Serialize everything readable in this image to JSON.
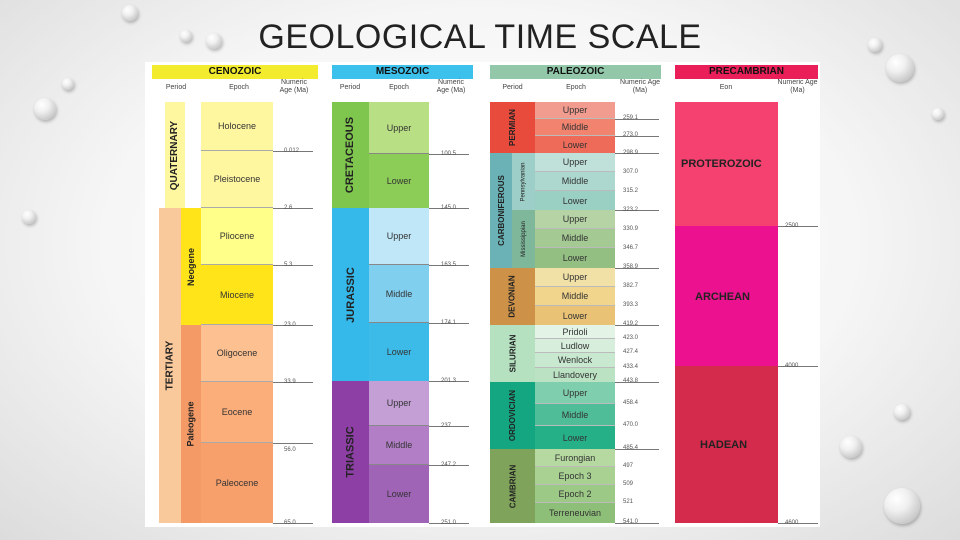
{
  "title": "GEOLOGICAL TIME SCALE",
  "colors": {
    "header_cenozoic": "#f3ec2e",
    "header_mesozoic": "#3cc0ec",
    "header_paleozoic": "#92c7aa",
    "header_precambrian": "#ea1f5a",
    "quaternary": "#fff7a0",
    "tertiary": "#f9c89b",
    "neogene": "#ffe419",
    "paleogene": "#f49a66",
    "cretaceous": "#7fc64e",
    "jurassic": "#35b8ea",
    "triassic": "#8e3fa5",
    "permian": "#e84a3c",
    "carboniferous": "#6ab2b5",
    "devonian": "#cd9148",
    "silurian": "#b5e1c0",
    "ordovician": "#13a681",
    "cambrian": "#7fa35b",
    "proterozoic": "#f4416f",
    "archean": "#ec118e",
    "hadean": "#d42a4b"
  },
  "cenozoic": {
    "header": "CENOZOIC",
    "period_label": "Period",
    "epoch_label": "Epoch",
    "age_label": "Numeric Age (Ma)",
    "periods": [
      "QUATERNARY",
      "TERTIARY"
    ],
    "subperiods": [
      "Neogene",
      "Paleogene"
    ],
    "epochs": [
      "Holocene",
      "Pleistocene",
      "Pliocene",
      "Miocene",
      "Oligocene",
      "Eocene",
      "Paleocene"
    ],
    "ages": [
      "0.012",
      "2.6",
      "5.3",
      "23.0",
      "33.9",
      "56.0",
      "65.0"
    ]
  },
  "mesozoic": {
    "header": "MESOZOIC",
    "period_label": "Period",
    "epoch_label": "Epoch",
    "age_label": "Numeric Age (Ma)",
    "periods": [
      "CRETACEOUS",
      "JURASSIC",
      "TRIASSIC"
    ],
    "epochs": [
      "Upper",
      "Lower",
      "Upper",
      "Middle",
      "Lower",
      "Upper",
      "Middle",
      "Lower"
    ],
    "ages": [
      "100.5",
      "145.0",
      "163.5",
      "174.1",
      "201.3",
      "237",
      "247.2",
      "251.0"
    ]
  },
  "paleozoic": {
    "header": "PALEOZOIC",
    "period_label": "Period",
    "epoch_label": "Epoch",
    "age_label": "Numeric Age (Ma)",
    "periods": [
      "PERMIAN",
      "CARBONIFEROUS",
      "DEVONIAN",
      "SILURIAN",
      "ORDOVICIAN",
      "CAMBRIAN"
    ],
    "subperiods": [
      "Pennsylvanian",
      "Mississippian"
    ],
    "epochs": [
      "Upper",
      "Middle",
      "Lower",
      "Upper",
      "Middle",
      "Lower",
      "Upper",
      "Middle",
      "Lower",
      "Upper",
      "Middle",
      "Lower",
      "Pridoli",
      "Ludlow",
      "Wenlock",
      "Llandovery",
      "Upper",
      "Middle",
      "Lower",
      "Furongian",
      "Epoch 3",
      "Epoch 2",
      "Terreneuvian"
    ],
    "ages": [
      "259.1",
      "273.0",
      "298.9",
      "307.0",
      "315.2",
      "323.2",
      "330.9",
      "346.7",
      "358.9",
      "382.7",
      "393.3",
      "419.2",
      "423.0",
      "427.4",
      "433.4",
      "443.8",
      "458.4",
      "470.0",
      "485.4",
      "497",
      "509",
      "521",
      "541.0"
    ]
  },
  "precambrian": {
    "header": "PRECAMBRIAN",
    "eon_label": "Eon",
    "age_label": "Numeric Age (Ma)",
    "eons": [
      "PROTEROZOIC",
      "ARCHEAN",
      "HADEAN"
    ],
    "ages": [
      "2500",
      "4000",
      "4600"
    ]
  }
}
